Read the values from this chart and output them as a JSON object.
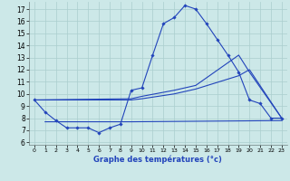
{
  "title": "Graphe des températures (°c)",
  "bg_color": "#cce8e8",
  "grid_color": "#aacece",
  "line_color": "#2244bb",
  "x_ticks": [
    0,
    1,
    2,
    3,
    4,
    5,
    6,
    7,
    8,
    9,
    10,
    11,
    12,
    13,
    14,
    15,
    16,
    17,
    18,
    19,
    20,
    21,
    22,
    23
  ],
  "y_ticks": [
    6,
    7,
    8,
    9,
    10,
    11,
    12,
    13,
    14,
    15,
    16,
    17
  ],
  "ylim": [
    5.8,
    17.6
  ],
  "xlim": [
    -0.5,
    23.5
  ],
  "series1_x": [
    0,
    1,
    2,
    3,
    4,
    5,
    6,
    7,
    8,
    9,
    10,
    11,
    12,
    13,
    14,
    15,
    16,
    17,
    18,
    19,
    20,
    21,
    22,
    23
  ],
  "series1_y": [
    9.5,
    8.5,
    7.8,
    7.2,
    7.2,
    7.2,
    6.8,
    7.2,
    7.5,
    10.3,
    10.5,
    13.2,
    15.8,
    16.3,
    17.3,
    17.0,
    15.8,
    14.5,
    13.2,
    11.8,
    9.5,
    9.2,
    8.0,
    8.0
  ],
  "series2_x": [
    0,
    9,
    10,
    13,
    14,
    15,
    19,
    20,
    23
  ],
  "series2_y": [
    9.5,
    9.6,
    9.8,
    10.3,
    10.5,
    10.7,
    13.2,
    11.8,
    8.0
  ],
  "series3_x": [
    0,
    9,
    10,
    13,
    14,
    15,
    19,
    20,
    23
  ],
  "series3_y": [
    9.5,
    9.5,
    9.6,
    10.0,
    10.2,
    10.4,
    11.5,
    12.0,
    8.0
  ],
  "series4_x": [
    1,
    8,
    9,
    23
  ],
  "series4_y": [
    7.7,
    7.7,
    7.7,
    7.8
  ]
}
